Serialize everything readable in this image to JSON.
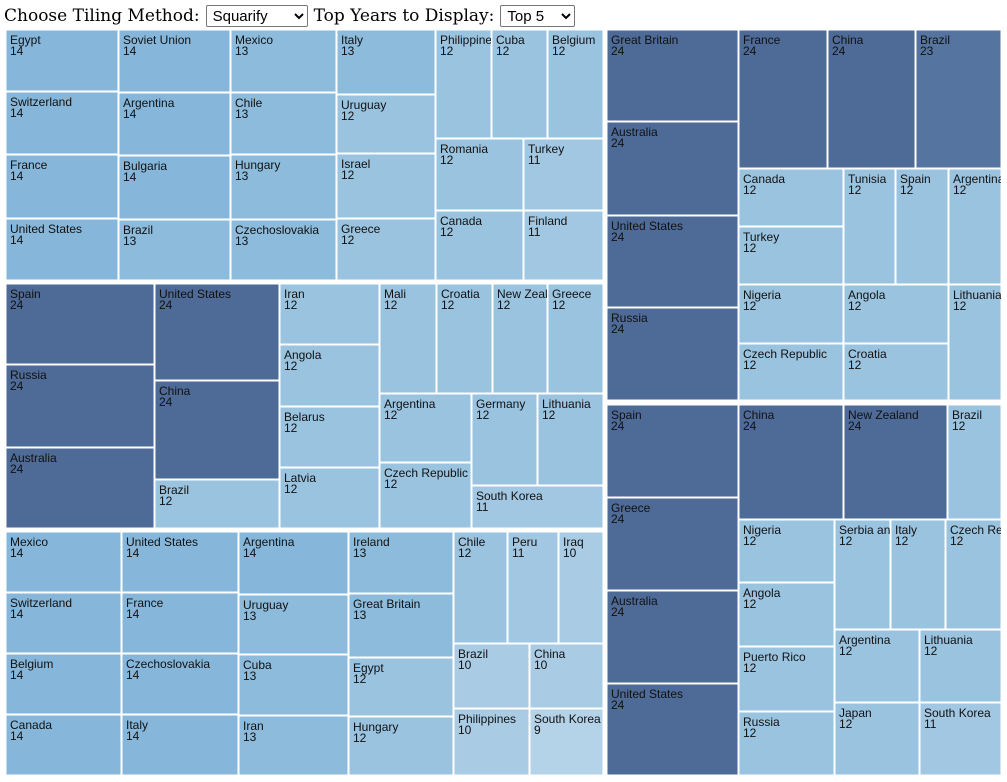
{
  "controls": {
    "tiling_label": "Choose Tiling Method:",
    "tiling_selected": "Squarify",
    "top_label": "Top Years to Display:",
    "top_selected": "Top 5"
  },
  "colors": {
    "value_9": "#b4d2e8",
    "value_10": "#a9cbe4",
    "value_11": "#a2c7e2",
    "value_12": "#9ac3e0",
    "value_13": "#8dbbdc",
    "value_14": "#86b7db",
    "value_23": "#5574a0",
    "value_24": "#4e6a96",
    "border": "#ffffff"
  },
  "chart_data": {
    "type": "treemap",
    "value_unit": "",
    "groups": [
      {
        "name": "group-1",
        "children": [
          {
            "name": "Egypt",
            "value": 14
          },
          {
            "name": "Switzerland",
            "value": 14
          },
          {
            "name": "France",
            "value": 14
          },
          {
            "name": "United States",
            "value": 14
          },
          {
            "name": "Soviet Union",
            "value": 14
          },
          {
            "name": "Argentina",
            "value": 14
          },
          {
            "name": "Bulgaria",
            "value": 14
          },
          {
            "name": "Brazil",
            "value": 13
          },
          {
            "name": "Mexico",
            "value": 13
          },
          {
            "name": "Chile",
            "value": 13
          },
          {
            "name": "Hungary",
            "value": 13
          },
          {
            "name": "Czechoslovakia",
            "value": 13
          },
          {
            "name": "Italy",
            "value": 13
          },
          {
            "name": "Uruguay",
            "value": 12
          },
          {
            "name": "Israel",
            "value": 12
          },
          {
            "name": "Greece",
            "value": 12
          },
          {
            "name": "Philippines",
            "value": 12
          },
          {
            "name": "Cuba",
            "value": 12
          },
          {
            "name": "Belgium",
            "value": 12
          },
          {
            "name": "Romania",
            "value": 12
          },
          {
            "name": "Turkey",
            "value": 11
          },
          {
            "name": "Canada",
            "value": 12
          },
          {
            "name": "Finland",
            "value": 11
          }
        ]
      },
      {
        "name": "group-2",
        "children": [
          {
            "name": "Spain",
            "value": 24
          },
          {
            "name": "Russia",
            "value": 24
          },
          {
            "name": "Australia",
            "value": 24
          },
          {
            "name": "United States",
            "value": 24
          },
          {
            "name": "China",
            "value": 24
          },
          {
            "name": "Brazil",
            "value": 12
          },
          {
            "name": "Iran",
            "value": 12
          },
          {
            "name": "Angola",
            "value": 12
          },
          {
            "name": "Belarus",
            "value": 12
          },
          {
            "name": "Latvia",
            "value": 12
          },
          {
            "name": "Mali",
            "value": 12
          },
          {
            "name": "Croatia",
            "value": 12
          },
          {
            "name": "New Zealand",
            "value": 12
          },
          {
            "name": "Greece",
            "value": 12
          },
          {
            "name": "Argentina",
            "value": 12
          },
          {
            "name": "Germany",
            "value": 12
          },
          {
            "name": "Lithuania",
            "value": 12
          },
          {
            "name": "Czech Republic",
            "value": 12
          },
          {
            "name": "South Korea",
            "value": 11
          }
        ]
      },
      {
        "name": "group-3",
        "children": [
          {
            "name": "Mexico",
            "value": 14
          },
          {
            "name": "Switzerland",
            "value": 14
          },
          {
            "name": "Belgium",
            "value": 14
          },
          {
            "name": "Canada",
            "value": 14
          },
          {
            "name": "United States",
            "value": 14
          },
          {
            "name": "France",
            "value": 14
          },
          {
            "name": "Czechoslovakia",
            "value": 14
          },
          {
            "name": "Italy",
            "value": 14
          },
          {
            "name": "Argentina",
            "value": 14
          },
          {
            "name": "Uruguay",
            "value": 13
          },
          {
            "name": "Cuba",
            "value": 13
          },
          {
            "name": "Iran",
            "value": 13
          },
          {
            "name": "Ireland",
            "value": 13
          },
          {
            "name": "Great Britain",
            "value": 13
          },
          {
            "name": "Egypt",
            "value": 12
          },
          {
            "name": "Hungary",
            "value": 12
          },
          {
            "name": "Chile",
            "value": 12
          },
          {
            "name": "Peru",
            "value": 11
          },
          {
            "name": "Iraq",
            "value": 10
          },
          {
            "name": "Brazil",
            "value": 10
          },
          {
            "name": "China",
            "value": 10
          },
          {
            "name": "Philippines",
            "value": 10
          },
          {
            "name": "South Korea",
            "value": 9
          }
        ]
      },
      {
        "name": "group-4",
        "children": [
          {
            "name": "Great Britain",
            "value": 24
          },
          {
            "name": "Australia",
            "value": 24
          },
          {
            "name": "United States",
            "value": 24
          },
          {
            "name": "Russia",
            "value": 24
          },
          {
            "name": "France",
            "value": 24
          },
          {
            "name": "China",
            "value": 24
          },
          {
            "name": "Brazil",
            "value": 23
          },
          {
            "name": "Canada",
            "value": 12
          },
          {
            "name": "Turkey",
            "value": 12
          },
          {
            "name": "Tunisia",
            "value": 12
          },
          {
            "name": "Spain",
            "value": 12
          },
          {
            "name": "Argentina",
            "value": 12
          },
          {
            "name": "Nigeria",
            "value": 12
          },
          {
            "name": "Angola",
            "value": 12
          },
          {
            "name": "Lithuania",
            "value": 12
          },
          {
            "name": "Czech Republic",
            "value": 12
          },
          {
            "name": "Croatia",
            "value": 12
          }
        ]
      },
      {
        "name": "group-5",
        "children": [
          {
            "name": "Spain",
            "value": 24
          },
          {
            "name": "Greece",
            "value": 24
          },
          {
            "name": "Australia",
            "value": 24
          },
          {
            "name": "United States",
            "value": 24
          },
          {
            "name": "China",
            "value": 24
          },
          {
            "name": "New Zealand",
            "value": 24
          },
          {
            "name": "Brazil",
            "value": 12
          },
          {
            "name": "Nigeria",
            "value": 12
          },
          {
            "name": "Serbia and Montenegro",
            "value": 12
          },
          {
            "name": "Italy",
            "value": 12
          },
          {
            "name": "Czech Republic",
            "value": 12
          },
          {
            "name": "Angola",
            "value": 12
          },
          {
            "name": "Argentina",
            "value": 12
          },
          {
            "name": "Lithuania",
            "value": 12
          },
          {
            "name": "Puerto Rico",
            "value": 12
          },
          {
            "name": "Russia",
            "value": 12
          },
          {
            "name": "Japan",
            "value": 12
          },
          {
            "name": "South Korea",
            "value": 11
          }
        ]
      }
    ]
  }
}
